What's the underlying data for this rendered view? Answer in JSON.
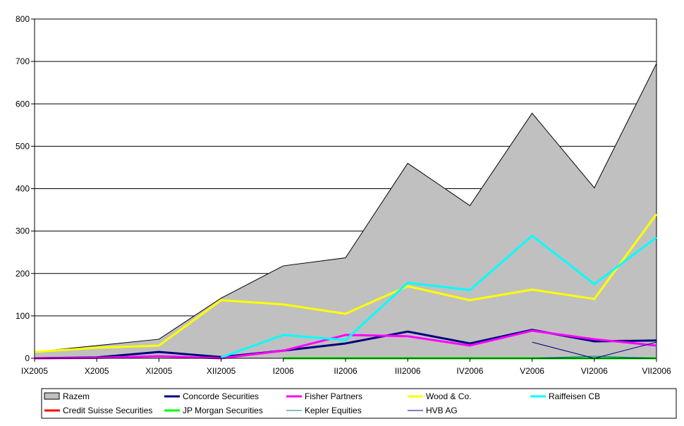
{
  "chart_data": {
    "type": "area",
    "title": "",
    "xlabel": "",
    "ylabel": "",
    "ylim": [
      0,
      800
    ],
    "yticks": [
      0,
      100,
      200,
      300,
      400,
      500,
      600,
      700,
      800
    ],
    "grid": true,
    "legend_position": "bottom",
    "categories": [
      "IX2005",
      "X2005",
      "XI2005",
      "XII2005",
      "I2006",
      "II2006",
      "III2006",
      "IV2006",
      "V2006",
      "VI2006",
      "VII2006"
    ],
    "series": [
      {
        "name": "Razem",
        "kind": "area",
        "color": "#c0c0c0",
        "values": [
          15,
          30,
          45,
          142,
          218,
          237,
          460,
          360,
          578,
          402,
          695
        ]
      },
      {
        "name": "Concorde Securities",
        "kind": "line",
        "color": "#000080",
        "width": 3,
        "values": [
          0,
          2,
          15,
          3,
          18,
          35,
          63,
          35,
          67,
          40,
          42
        ]
      },
      {
        "name": "Fisher Partners",
        "kind": "line",
        "color": "#ff00ff",
        "width": 3,
        "values": [
          0,
          1,
          5,
          0,
          18,
          55,
          52,
          30,
          65,
          45,
          30
        ]
      },
      {
        "name": "Wood & Co.",
        "kind": "line",
        "color": "#ffff00",
        "width": 3,
        "values": [
          15,
          25,
          30,
          137,
          127,
          105,
          170,
          137,
          162,
          140,
          340
        ]
      },
      {
        "name": "Raiffeisen CB",
        "kind": "line",
        "color": "#00ffff",
        "width": 3,
        "values": [
          null,
          null,
          null,
          2,
          55,
          43,
          178,
          161,
          289,
          175,
          285
        ]
      },
      {
        "name": "Credit Suisse Securities",
        "kind": "line",
        "color": "#ff0000",
        "width": 3,
        "values": [
          null,
          null,
          null,
          null,
          0,
          0,
          0,
          0,
          0,
          0,
          0
        ]
      },
      {
        "name": "JP Morgan Securities",
        "kind": "line",
        "color": "#00ff00",
        "width": 3,
        "values": [
          null,
          null,
          null,
          null,
          0,
          0,
          0,
          0,
          0,
          0,
          0
        ]
      },
      {
        "name": "Kepler Equities",
        "kind": "line",
        "color": "#008080",
        "width": 1,
        "values": [
          null,
          null,
          null,
          null,
          null,
          null,
          null,
          null,
          0,
          5,
          0
        ]
      },
      {
        "name": "HVB AG",
        "kind": "line",
        "color": "#000080",
        "width": 1,
        "values": [
          null,
          null,
          null,
          null,
          null,
          null,
          null,
          null,
          38,
          0,
          38
        ]
      }
    ]
  }
}
